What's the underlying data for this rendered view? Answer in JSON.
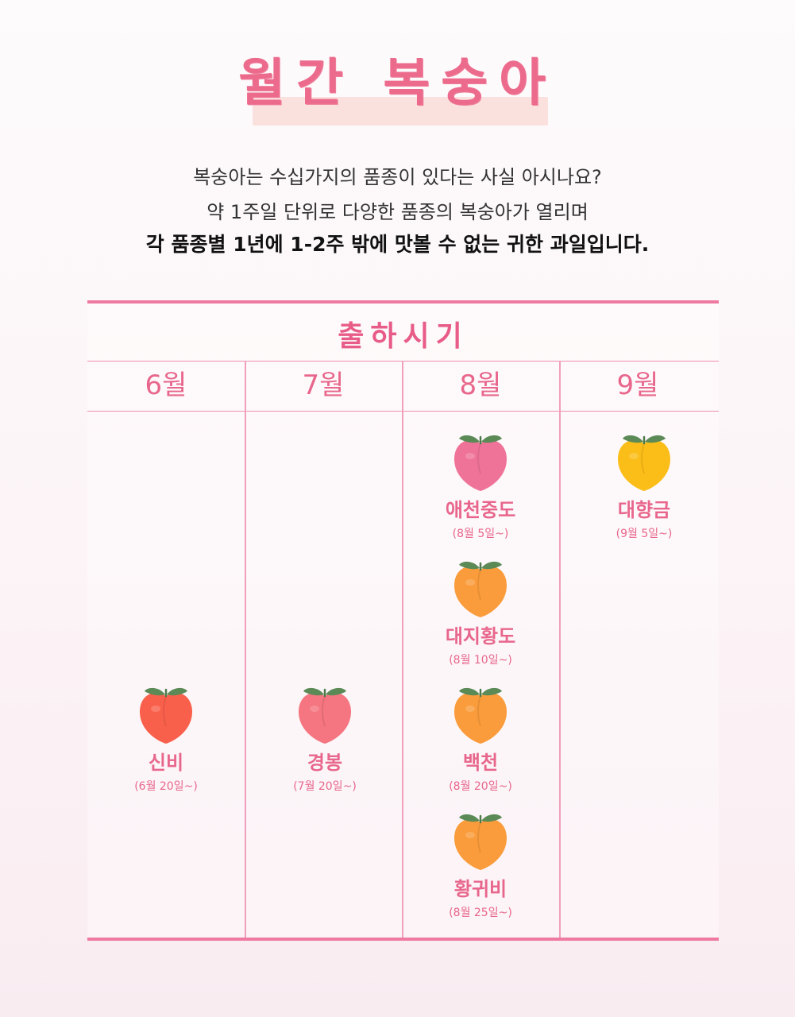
{
  "title": "월간 복숭아",
  "intro": {
    "line1": "복숭아는 수십가지의 품종이 있다는 사실 아시나요?",
    "line2": "약 1주일 단위로 다양한 품종의 복숭아가 열리며",
    "line3": "각 품종별 1년에 1-2주 밖에 맛볼 수 없는 귀한 과일입니다."
  },
  "table": {
    "section_title": "출하시기",
    "months": [
      "6월",
      "7월",
      "8월",
      "9월"
    ]
  },
  "peaches": [
    {
      "name": "신비",
      "date": "(6월 20일~)",
      "color": "#f9604b",
      "icon": "peach-icon"
    },
    {
      "name": "경봉",
      "date": "(7월 20일~)",
      "color": "#f57580",
      "icon": "peach-icon"
    },
    {
      "name": "애천중도",
      "date": "(8월 5일~)",
      "color": "#ef7398",
      "icon": "peach-icon"
    },
    {
      "name": "대지황도",
      "date": "(8월 10일~)",
      "color": "#fa9c3b",
      "icon": "peach-icon"
    },
    {
      "name": "백천",
      "date": "(8월 20일~)",
      "color": "#fa9c3b",
      "icon": "peach-icon"
    },
    {
      "name": "황귀비",
      "date": "(8월 25일~)",
      "color": "#fa9c3b",
      "icon": "peach-icon"
    },
    {
      "name": "대향금",
      "date": "(9월 5일~)",
      "color": "#fbbd17",
      "icon": "peach-icon"
    }
  ],
  "colors": {
    "accent": "#e8668c",
    "leaf": "#5b8a57"
  }
}
